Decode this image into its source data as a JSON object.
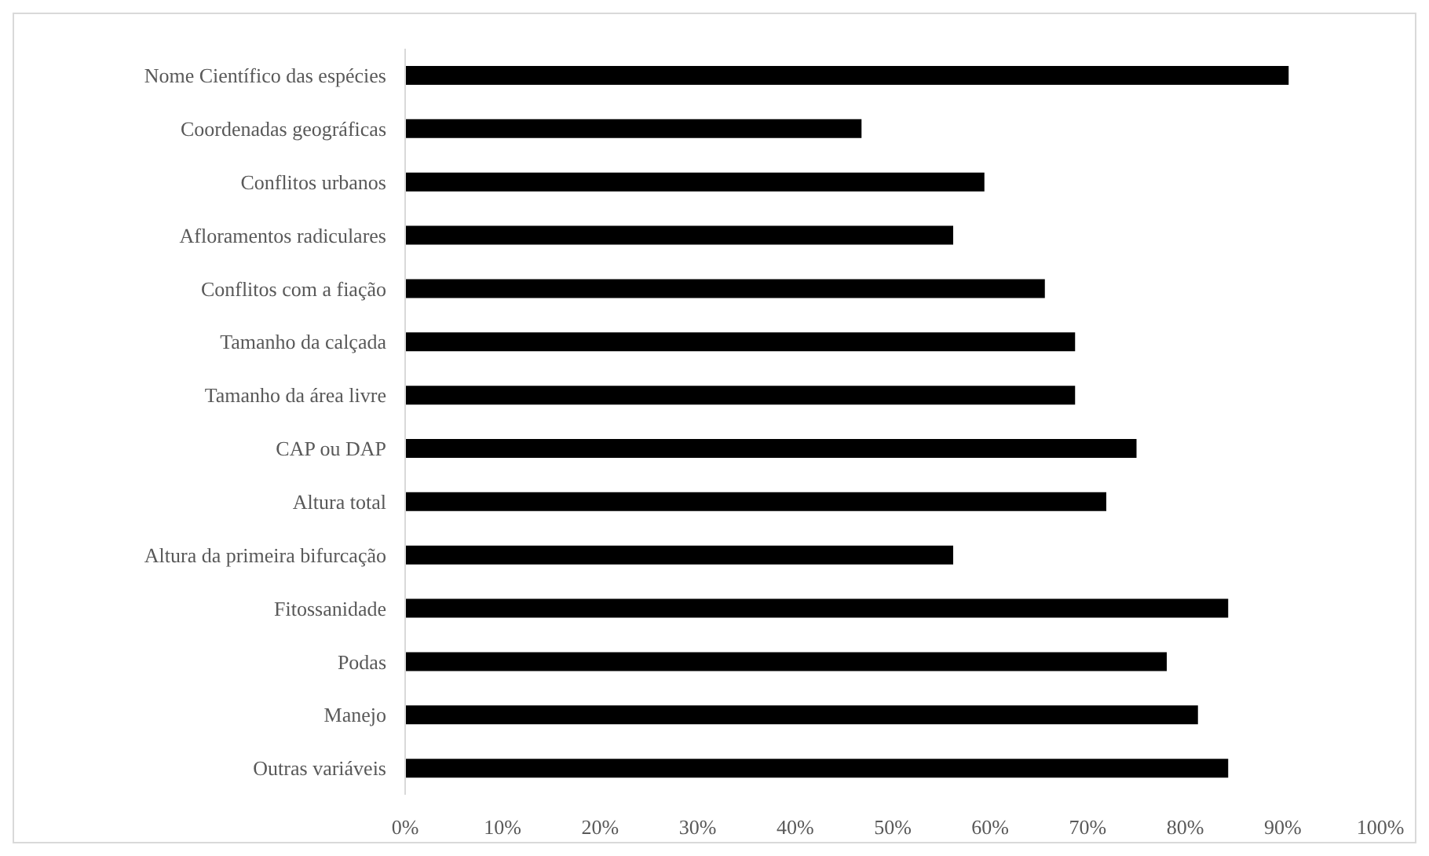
{
  "chart_data": {
    "type": "bar",
    "orientation": "horizontal",
    "categories": [
      "Nome Científico das espécies",
      "Coordenadas geográficas",
      "Conflitos urbanos",
      "Afloramentos radiculares",
      "Conflitos com a fiação",
      "Tamanho da calçada",
      "Tamanho da área livre",
      "CAP ou DAP",
      "Altura total",
      "Altura da primeira bifurcação",
      "Fitossanidade",
      "Podas",
      "Manejo",
      "Outras variáveis"
    ],
    "values": [
      90.6,
      46.8,
      59.4,
      56.2,
      65.6,
      68.7,
      68.7,
      75.0,
      71.9,
      56.2,
      84.4,
      78.1,
      81.3,
      84.4
    ],
    "color": "#000000",
    "xlim": [
      0,
      100
    ],
    "xticks": [
      {
        "value": 0,
        "label": "0%"
      },
      {
        "value": 10,
        "label": "10%"
      },
      {
        "value": 20,
        "label": "20%"
      },
      {
        "value": 30,
        "label": "30%"
      },
      {
        "value": 40,
        "label": "40%"
      },
      {
        "value": 50,
        "label": "50%"
      },
      {
        "value": 60,
        "label": "60%"
      },
      {
        "value": 70,
        "label": "70%"
      },
      {
        "value": 80,
        "label": "80%"
      },
      {
        "value": 90,
        "label": "90%"
      },
      {
        "value": 100,
        "label": "100%"
      }
    ],
    "grid": false,
    "legend": false
  }
}
